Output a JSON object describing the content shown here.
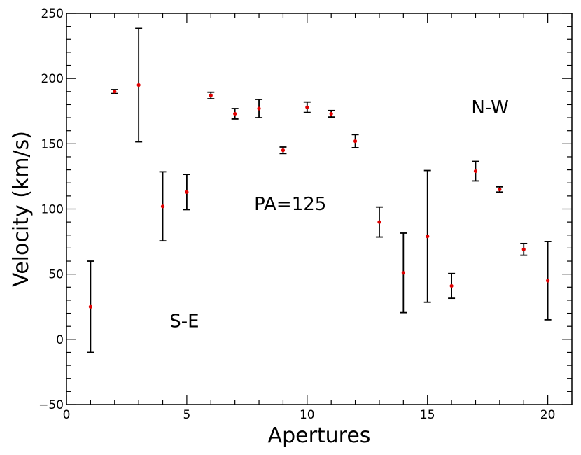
{
  "chart_data": {
    "type": "scatter",
    "title": "",
    "xlabel": "Apertures",
    "ylabel": "Velocity (km/s)",
    "xlim": [
      0,
      21
    ],
    "ylim": [
      -50,
      250
    ],
    "xticks": [
      0,
      5,
      10,
      15,
      20
    ],
    "yticks": [
      -50,
      0,
      50,
      100,
      150,
      200,
      250
    ],
    "grid": false,
    "legend": "none",
    "point_color": "#e00000",
    "errorbar_color": "#000000",
    "series": [
      {
        "x": [
          1,
          2,
          3,
          4,
          5,
          6,
          7,
          8,
          9,
          10,
          11,
          12,
          13,
          14,
          15,
          16,
          17,
          18,
          19,
          20
        ],
        "y": [
          25,
          190,
          195,
          102,
          113,
          187,
          173,
          177,
          145,
          178,
          173,
          152,
          90,
          51,
          79,
          41,
          129,
          115,
          69,
          45
        ],
        "yerr": [
          35,
          1.5,
          43.5,
          26.5,
          13.5,
          2.5,
          4,
          7,
          2.5,
          4,
          2.5,
          5,
          11.5,
          30.5,
          50.5,
          9.5,
          7.5,
          2,
          4.5,
          30
        ]
      }
    ],
    "annotations": [
      {
        "text": "N-W",
        "x": 17.6,
        "y": 178
      },
      {
        "text": "PA=125",
        "x": 9.3,
        "y": 104
      },
      {
        "text": "S-E",
        "x": 4.9,
        "y": 14
      }
    ]
  }
}
